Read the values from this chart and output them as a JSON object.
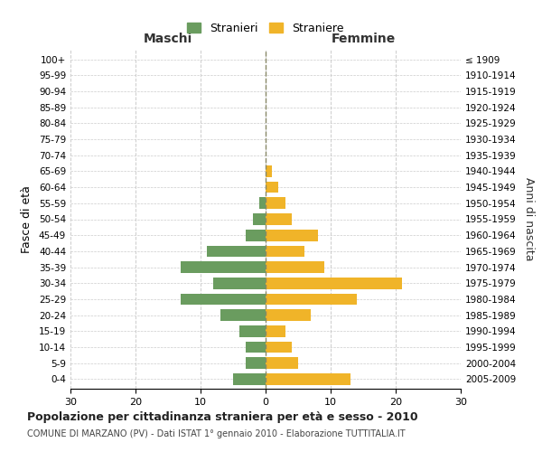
{
  "age_groups": [
    "0-4",
    "5-9",
    "10-14",
    "15-19",
    "20-24",
    "25-29",
    "30-34",
    "35-39",
    "40-44",
    "45-49",
    "50-54",
    "55-59",
    "60-64",
    "65-69",
    "70-74",
    "75-79",
    "80-84",
    "85-89",
    "90-94",
    "95-99",
    "100+"
  ],
  "birth_years": [
    "2005-2009",
    "2000-2004",
    "1995-1999",
    "1990-1994",
    "1985-1989",
    "1980-1984",
    "1975-1979",
    "1970-1974",
    "1965-1969",
    "1960-1964",
    "1955-1959",
    "1950-1954",
    "1945-1949",
    "1940-1944",
    "1935-1939",
    "1930-1934",
    "1925-1929",
    "1920-1924",
    "1915-1919",
    "1910-1914",
    "≤ 1909"
  ],
  "males": [
    5,
    3,
    3,
    4,
    7,
    13,
    8,
    13,
    9,
    3,
    2,
    1,
    0,
    0,
    0,
    0,
    0,
    0,
    0,
    0,
    0
  ],
  "females": [
    13,
    5,
    4,
    3,
    7,
    14,
    21,
    9,
    6,
    8,
    4,
    3,
    2,
    1,
    0,
    0,
    0,
    0,
    0,
    0,
    0
  ],
  "male_color": "#6a9c5f",
  "female_color": "#f0b429",
  "grid_color": "#cccccc",
  "bg_color": "#ffffff",
  "title": "Popolazione per cittadinanza straniera per età e sesso - 2010",
  "subtitle": "COMUNE DI MARZANO (PV) - Dati ISTAT 1° gennaio 2010 - Elaborazione TUTTITALIA.IT",
  "xlabel_left": "Maschi",
  "xlabel_right": "Femmine",
  "ylabel_left": "Fasce di età",
  "ylabel_right": "Anni di nascita",
  "legend_stranieri": "Stranieri",
  "legend_straniere": "Straniere",
  "xlim": 30
}
